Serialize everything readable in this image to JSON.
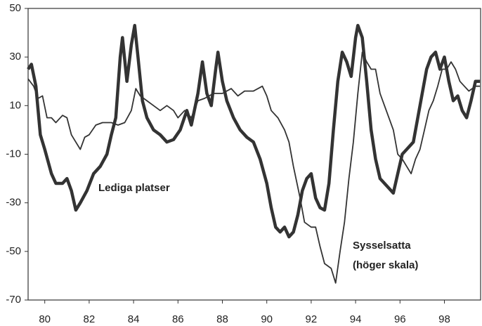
{
  "chart_data": {
    "type": "line",
    "xlim": [
      79.25,
      99.63
    ],
    "xticks": [
      80,
      82,
      84,
      86,
      88,
      90,
      92,
      94,
      96,
      98
    ],
    "ylim": [
      -70,
      50
    ],
    "yticks": [
      50,
      30,
      10,
      -10,
      -30,
      -50,
      -70
    ],
    "annotations": [
      "(höger skala)"
    ],
    "series": [
      {
        "name": "Lediga platser",
        "color": "#333333",
        "width": 4.5,
        "x": [
          79.25,
          79.4,
          79.6,
          79.8,
          80.0,
          80.3,
          80.5,
          80.8,
          81.0,
          81.2,
          81.4,
          81.6,
          81.9,
          82.2,
          82.5,
          82.8,
          83.0,
          83.2,
          83.4,
          83.5,
          83.7,
          83.9,
          84.05,
          84.2,
          84.4,
          84.6,
          84.9,
          85.2,
          85.5,
          85.8,
          86.1,
          86.4,
          86.6,
          86.9,
          87.1,
          87.3,
          87.5,
          87.7,
          87.8,
          88.0,
          88.2,
          88.5,
          88.8,
          89.1,
          89.4,
          89.7,
          90.0,
          90.2,
          90.4,
          90.6,
          90.8,
          91.0,
          91.2,
          91.4,
          91.6,
          91.8,
          92.0,
          92.2,
          92.4,
          92.6,
          92.8,
          93.0,
          93.2,
          93.4,
          93.6,
          93.8,
          94.0,
          94.1,
          94.3,
          94.5,
          94.7,
          94.9,
          95.1,
          95.3,
          95.5,
          95.7,
          95.9,
          96.1,
          96.3,
          96.6,
          96.8,
          97.0,
          97.2,
          97.4,
          97.6,
          97.8,
          98.0,
          98.2,
          98.4,
          98.6,
          98.8,
          99.0,
          99.2,
          99.4,
          99.6
        ],
        "values": [
          25,
          27,
          18,
          -2,
          -8,
          -18,
          -22,
          -22,
          -20,
          -25,
          -33,
          -30,
          -25,
          -18,
          -15,
          -10,
          -2,
          5,
          30,
          38,
          20,
          35,
          43,
          30,
          12,
          5,
          0,
          -2,
          -5,
          -4,
          0,
          8,
          2,
          15,
          28,
          15,
          10,
          25,
          32,
          20,
          12,
          5,
          0,
          -3,
          -5,
          -12,
          -22,
          -32,
          -40,
          -42,
          -40,
          -44,
          -42,
          -35,
          -25,
          -20,
          -18,
          -28,
          -32,
          -33,
          -22,
          0,
          20,
          32,
          28,
          22,
          38,
          43,
          38,
          20,
          0,
          -12,
          -20,
          -22,
          -24,
          -26,
          -18,
          -10,
          -8,
          -5,
          5,
          15,
          25,
          30,
          32,
          25,
          30,
          20,
          12,
          14,
          8,
          5,
          12,
          20,
          20
        ]
      },
      {
        "name": "Sysselsatta",
        "color": "#333333",
        "width": 1.8,
        "x": [
          79.25,
          79.5,
          79.7,
          79.9,
          80.1,
          80.3,
          80.5,
          80.8,
          81.0,
          81.2,
          81.4,
          81.6,
          81.8,
          82.0,
          82.3,
          82.6,
          83.0,
          83.3,
          83.6,
          83.9,
          84.1,
          84.3,
          84.6,
          84.9,
          85.2,
          85.5,
          85.8,
          86.0,
          86.3,
          86.6,
          86.9,
          87.2,
          87.6,
          88.0,
          88.4,
          88.7,
          89.0,
          89.4,
          89.8,
          90.0,
          90.2,
          90.5,
          90.8,
          91.0,
          91.2,
          91.5,
          91.7,
          92.0,
          92.2,
          92.4,
          92.6,
          92.9,
          93.1,
          93.3,
          93.5,
          93.7,
          93.9,
          94.1,
          94.3,
          94.5,
          94.7,
          94.9,
          95.1,
          95.3,
          95.5,
          95.7,
          95.9,
          96.1,
          96.3,
          96.5,
          96.7,
          96.9,
          97.1,
          97.3,
          97.5,
          97.7,
          97.9,
          98.1,
          98.3,
          98.5,
          98.7,
          98.9,
          99.1,
          99.4,
          99.6
        ],
        "values": [
          21,
          18,
          13,
          14,
          5,
          5,
          3,
          6,
          5,
          -2,
          -5,
          -8,
          -3,
          -2,
          2,
          3,
          3,
          2,
          3,
          8,
          17,
          14,
          12,
          10,
          8,
          10,
          8,
          5,
          8,
          5,
          12,
          13,
          15,
          15,
          17,
          14,
          16,
          16,
          18,
          14,
          8,
          5,
          0,
          -5,
          -15,
          -28,
          -38,
          -40,
          -40,
          -48,
          -55,
          -57,
          -63,
          -50,
          -38,
          -20,
          -5,
          15,
          32,
          28,
          25,
          25,
          15,
          10,
          5,
          0,
          -10,
          -12,
          -15,
          -18,
          -12,
          -8,
          0,
          8,
          12,
          18,
          25,
          25,
          28,
          25,
          20,
          18,
          16,
          18,
          18
        ]
      }
    ]
  }
}
